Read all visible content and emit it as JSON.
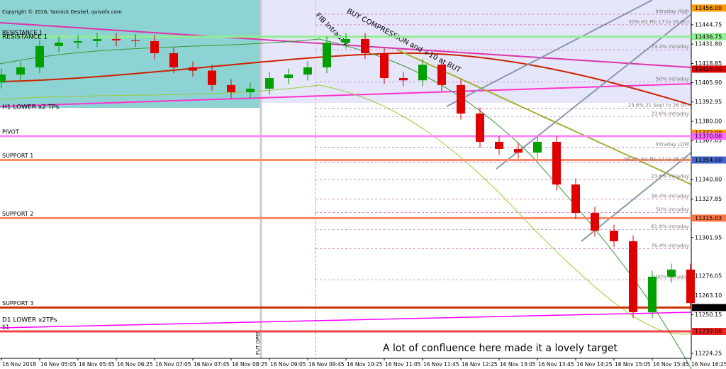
{
  "chart_data": {
    "type": "candlestick",
    "title": "Copyright © 2016, Yannick Deubel, quivofx.com",
    "annotation": "A lot of confluence here made it a lovely target",
    "rotated_notes": [
      "BUY COMPRESSION and +10 at BUT",
      "FIB Intraday",
      "FUT OPEN"
    ],
    "x": [
      "16 Nov 04:25",
      "16 Nov 04:45",
      "16 Nov 05:05",
      "16 Nov 05:25",
      "16 Nov 05:45",
      "16 Nov 06:05",
      "16 Nov 06:25",
      "16 Nov 06:45",
      "16 Nov 07:05",
      "16 Nov 07:25",
      "16 Nov 07:45",
      "16 Nov 08:05",
      "16 Nov 08:25",
      "16 Nov 08:45",
      "16 Nov 09:05",
      "16 Nov 09:25",
      "16 Nov 09:45",
      "16 Nov 10:05",
      "16 Nov 10:25",
      "16 Nov 10:45",
      "16 Nov 11:05",
      "16 Nov 11:25",
      "16 Nov 11:45",
      "16 Nov 12:05",
      "16 Nov 12:25",
      "16 Nov 12:45",
      "16 Nov 13:05",
      "16 Nov 13:25",
      "16 Nov 13:45",
      "16 Nov 14:05",
      "16 Nov 14:25",
      "16 Nov 14:45",
      "16 Nov 15:05",
      "16 Nov 15:25",
      "16 Nov 15:45",
      "16 Nov 16:05",
      "16 Nov 16:25"
    ],
    "open": [
      11406.0,
      11411.4,
      11416.2,
      11430.5,
      11432.8,
      11433.8,
      11435.2,
      11434.3,
      11433.8,
      11425.7,
      11416.2,
      11414.0,
      11404.3,
      11399.5,
      11401.9,
      11409.0,
      11411.4,
      11416.2,
      11432.8,
      11435.2,
      11425.7,
      11409.0,
      11407.5,
      11418.0,
      11404.3,
      11385.2,
      11366.2,
      11361.4,
      11359.0,
      11366.2,
      11337.6,
      11318.5,
      11306.6,
      11299.5,
      11251.9,
      11275.7,
      11280.5
    ],
    "high": [
      11415.4,
      11420.2,
      11434.5,
      11436.8,
      11437.8,
      11439.2,
      11439.2,
      11438.3,
      11437.8,
      11429.7,
      11420.2,
      11418.0,
      11408.3,
      11405.9,
      11413.0,
      11415.4,
      11420.2,
      11436.8,
      11439.2,
      11439.2,
      11429.7,
      11413.0,
      11422.0,
      11422.0,
      11408.3,
      11389.2,
      11370.2,
      11365.4,
      11370.2,
      11370.2,
      11341.6,
      11322.5,
      11310.6,
      11303.5,
      11279.7,
      11284.5,
      11284.5
    ],
    "low": [
      11402.0,
      11407.4,
      11412.2,
      11426.5,
      11428.8,
      11429.8,
      11430.3,
      11429.8,
      11421.7,
      11412.2,
      11410.0,
      11400.3,
      11395.5,
      11395.5,
      11397.9,
      11405.0,
      11407.4,
      11412.2,
      11428.8,
      11421.7,
      11405.0,
      11403.5,
      11403.5,
      11400.3,
      11381.2,
      11362.2,
      11357.4,
      11355.0,
      11355.0,
      11333.6,
      11314.5,
      11302.6,
      11295.5,
      11247.9,
      11247.9,
      11271.7,
      11254.0
    ],
    "close": [
      11411.4,
      11416.2,
      11430.5,
      11432.8,
      11433.8,
      11435.2,
      11434.3,
      11433.8,
      11425.7,
      11416.2,
      11414.0,
      11404.3,
      11399.5,
      11401.9,
      11409.0,
      11411.4,
      11416.2,
      11432.8,
      11435.2,
      11425.7,
      11409.0,
      11407.5,
      11418.0,
      11404.3,
      11385.2,
      11366.2,
      11361.4,
      11359.0,
      11366.2,
      11337.6,
      11318.5,
      11306.6,
      11299.5,
      11251.9,
      11275.7,
      11280.5,
      11258.0
    ],
    "up_color": "#00a000",
    "down_color": "#e00000",
    "xticks": [
      "16 Nov 2018",
      "16 Nov 05:05",
      "16 Nov 05:45",
      "16 Nov 06:25",
      "16 Nov 07:05",
      "16 Nov 07:45",
      "16 Nov 08:25",
      "16 Nov 09:05",
      "16 Nov 09:45",
      "16 Nov 10:25",
      "16 Nov 11:05",
      "16 Nov 11:45",
      "16 Nov 12:25",
      "16 Nov 13:05",
      "16 Nov 13:45",
      "16 Nov 14:25",
      "16 Nov 15:05",
      "16 Nov 15:45",
      "16 Nov 16:25"
    ],
    "ylim": [
      11220.9,
      11461.4
    ],
    "yticks": [
      {
        "value": 11444.75,
        "label": "11444.75"
      },
      {
        "value": 11431.8,
        "label": "11431.80"
      },
      {
        "value": 11418.85,
        "label": "11418.85"
      },
      {
        "value": 11405.9,
        "label": "11405.90"
      },
      {
        "value": 11392.95,
        "label": "11392.95"
      },
      {
        "value": 11380,
        "label": "11380.00"
      },
      {
        "value": 11367.05,
        "label": "11367.05"
      },
      {
        "value": 11340.8,
        "label": "11340.80"
      },
      {
        "value": 11327.85,
        "label": "11327.85"
      },
      {
        "value": 11301.95,
        "label": "11301.95"
      },
      {
        "value": 11276.05,
        "label": "11276.05"
      },
      {
        "value": 11263.1,
        "label": "11263.10"
      },
      {
        "value": 11250.15,
        "label": "11250.15"
      },
      {
        "value": 11224.25,
        "label": "11224.25"
      }
    ],
    "levels": [
      {
        "label": "RESISTANCE 1",
        "value": 11436.75,
        "color": "#90ee90"
      },
      {
        "label": "PIVOT",
        "value": 11370,
        "color": "#ff88ff"
      },
      {
        "label": "SUPPORT 1",
        "value": 11354,
        "color": "#ff8866"
      },
      {
        "label": "SUPPORT 2",
        "value": 11315.03,
        "color": "#ff8866"
      },
      {
        "label": "SUPPORT 3",
        "value": 11255,
        "color": "#cc3300"
      },
      {
        "label": "S1",
        "value": 11239,
        "color": "#ee4444"
      }
    ],
    "price_boxes": [
      {
        "value": 11456,
        "label": "11456.00",
        "color": "#ff9900"
      },
      {
        "value": 11436.75,
        "label": "11436.75",
        "color": "#90ee90"
      },
      {
        "value": 11415,
        "label": "11415.00",
        "color": "#dd0000"
      },
      {
        "value": 11372,
        "label": "11372.00",
        "color": "#ff9900"
      },
      {
        "value": 11370,
        "label": "11370.00",
        "color": "#ff66ff"
      },
      {
        "value": 11354,
        "label": "11354.00",
        "color": "#4466cc"
      },
      {
        "value": 11315.03,
        "label": "11315.03",
        "color": "#ff7744"
      },
      {
        "value": 11255,
        "label": "11255.00",
        "color": "#000000"
      },
      {
        "value": 11239,
        "label": "11239.00",
        "color": "#ee2222"
      }
    ],
    "fib_labels": [
      {
        "label": "Intraday High",
        "value": 11451.9
      },
      {
        "label": "50%   H1 Fib 17 to 26 Oct",
        "value": 11444.75
      },
      {
        "label": "73.4%  Intraday",
        "value": 11428.0
      },
      {
        "label": "50%  Intraday",
        "value": 11406.4
      },
      {
        "label": "23.6%  21 Sept to 26 Oct",
        "value": 11388.8
      },
      {
        "label": "23.6%  Intraday",
        "value": 11383.0
      },
      {
        "label": "Intraday LOW",
        "value": 11362.5
      },
      {
        "label": "38.2% H1 Fib 17 to 26 Oct",
        "value": 11352.6
      },
      {
        "label": "23.6%  Intraday",
        "value": 11341.2
      },
      {
        "label": "38.4%  Intraday",
        "value": 11327.9
      },
      {
        "label": "50%  Intraday",
        "value": 11318.8
      },
      {
        "label": "61.8%  Intraday",
        "value": 11307.4
      },
      {
        "label": "76.4%  Intraday",
        "value": 11294.5
      },
      {
        "label": "100%  Intraday",
        "value": 11273.5
      }
    ],
    "side_labels": [
      {
        "label": "RESISTANCE 1",
        "value": 11436.75
      },
      {
        "label": "H1 LOWER x2 TPs",
        "value": 11389.5
      },
      {
        "label": "D1 LOWER x2TPs",
        "value": 11246.5
      }
    ]
  }
}
